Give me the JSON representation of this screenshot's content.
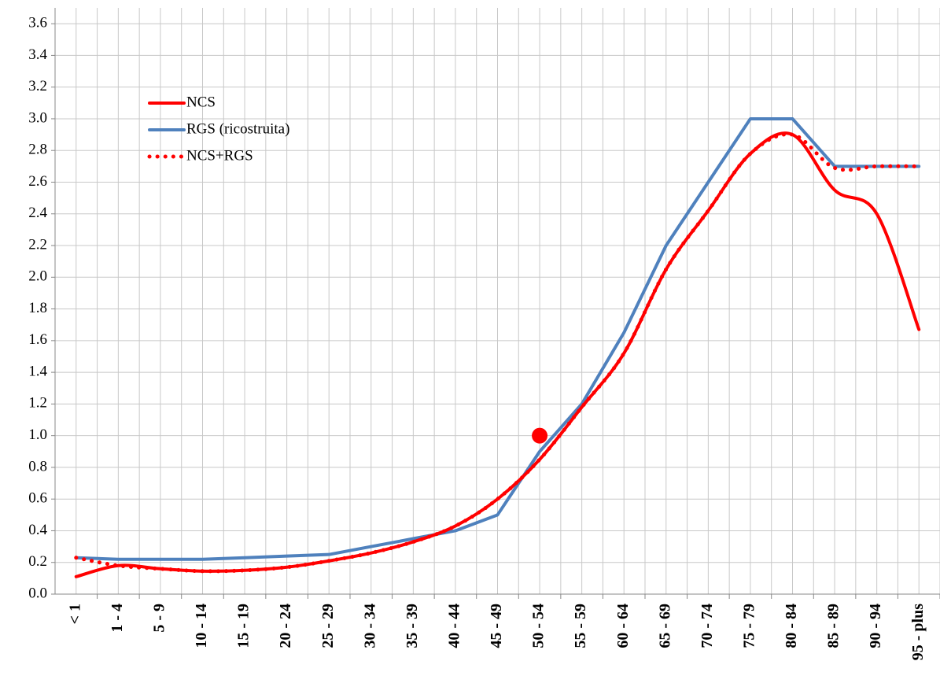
{
  "chart_data": {
    "type": "line",
    "categories": [
      "< 1",
      "1 - 4",
      "5 - 9",
      "10 - 14",
      "15 - 19",
      "20 - 24",
      "25 - 29",
      "30 - 34",
      "35 - 39",
      "40 - 44",
      "45 - 49",
      "50 - 54",
      "55 - 59",
      "60 - 64",
      "65 - 69",
      "70 - 74",
      "75 - 79",
      "80 - 84",
      "85 - 89",
      "90 - 94",
      "95 - plus"
    ],
    "series": [
      {
        "name": "NCS",
        "color": "#ff0000",
        "style": "solid",
        "smooth": true,
        "values": [
          0.11,
          0.18,
          0.16,
          0.145,
          0.15,
          0.17,
          0.21,
          0.26,
          0.33,
          0.43,
          0.6,
          0.85,
          1.18,
          1.52,
          2.05,
          2.42,
          2.78,
          2.9,
          2.55,
          2.4,
          1.67
        ]
      },
      {
        "name": "RGS (ricostruita)",
        "color": "#4f81bd",
        "style": "solid",
        "smooth": false,
        "values": [
          0.23,
          0.22,
          0.22,
          0.22,
          0.23,
          0.24,
          0.25,
          0.3,
          0.35,
          0.4,
          0.5,
          0.9,
          1.2,
          1.65,
          2.2,
          2.6,
          3.0,
          3.0,
          2.7,
          2.7,
          2.7
        ]
      },
      {
        "name": "NCS+RGS",
        "color": "#ff0000",
        "style": "dotted",
        "smooth": true,
        "values": [
          0.23,
          0.18,
          0.16,
          0.145,
          0.15,
          0.17,
          0.21,
          0.26,
          0.33,
          0.43,
          0.6,
          0.85,
          1.18,
          1.52,
          2.05,
          2.42,
          2.78,
          2.9,
          2.69,
          2.7,
          2.7
        ]
      }
    ],
    "points": [
      {
        "category": "50 - 54",
        "value": 1.0,
        "color": "#ff0000"
      }
    ],
    "ylim": [
      0,
      3.7
    ],
    "yticks": [
      {
        "value": 0,
        "label": "0.0"
      },
      0.2,
      0.4,
      0.6,
      0.8,
      {
        "value": 1,
        "label": "1.0"
      },
      1.2,
      1.4,
      1.6,
      1.8,
      {
        "value": 2,
        "label": "2.0"
      },
      2.2,
      2.4,
      2.6,
      2.8,
      {
        "value": 3,
        "label": "3.0"
      },
      3.2,
      3.4,
      3.6
    ],
    "grid": true,
    "legend": "upper-left"
  }
}
